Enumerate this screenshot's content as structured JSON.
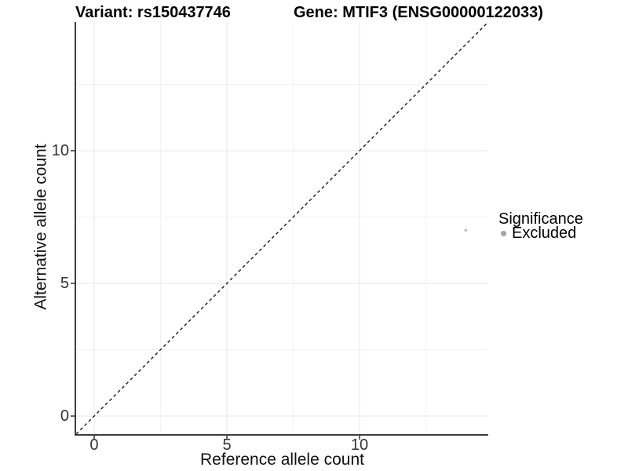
{
  "header": {
    "variant_title": "Variant: rs150437746",
    "gene_title": "Gene: MTIF3 (ENSG00000122033)"
  },
  "chart_data": {
    "type": "scatter",
    "title": "Variant: rs150437746    Gene: MTIF3 (ENSG00000122033)",
    "xlabel": "Reference allele count",
    "ylabel": "Alternative allele count",
    "xlim": [
      -0.68,
      14.85
    ],
    "ylim": [
      -0.68,
      14.85
    ],
    "x_ticks": [
      0,
      5,
      10
    ],
    "y_ticks": [
      0,
      5,
      10
    ],
    "minor_ticks": [
      2.5,
      7.5,
      12.5
    ],
    "grid": true,
    "legend_position": "right",
    "series": [
      {
        "name": "Excluded",
        "color": "#bdbdbd",
        "point_radius": 1.8,
        "points": [
          {
            "x": 14,
            "y": 7
          }
        ]
      }
    ],
    "reference_line": {
      "type": "identity",
      "style": "dashed",
      "x1": -0.68,
      "y1": -0.68,
      "x2": 14.85,
      "y2": 14.85
    }
  },
  "legend": {
    "title": "Significance",
    "items": [
      {
        "label": "Excluded",
        "color": "#a3a3a3"
      }
    ]
  },
  "colors": {
    "background": "#ffffff",
    "grid_major": "#e7e7e7",
    "grid_minor": "#f2f2f2",
    "axis_line": "#3c3c3c",
    "tick_mark": "#333333",
    "tick_label": "#333333",
    "text": "#000000",
    "dashed_line": "#1a1a1a"
  }
}
